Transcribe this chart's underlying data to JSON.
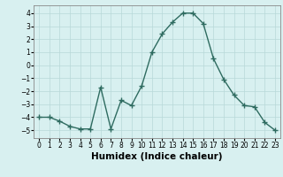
{
  "x": [
    0,
    1,
    2,
    3,
    4,
    5,
    6,
    7,
    8,
    9,
    10,
    11,
    12,
    13,
    14,
    15,
    16,
    17,
    18,
    19,
    20,
    21,
    22,
    23
  ],
  "y": [
    -4.0,
    -4.0,
    -4.3,
    -4.7,
    -4.9,
    -4.9,
    -1.7,
    -4.9,
    -2.7,
    -3.1,
    -1.6,
    1.0,
    2.4,
    3.3,
    4.0,
    4.0,
    3.2,
    0.5,
    -1.1,
    -2.3,
    -3.1,
    -3.2,
    -4.4,
    -5.0
  ],
  "line_color": "#2e6b60",
  "marker": "+",
  "markersize": 4,
  "linewidth": 1.0,
  "bg_color": "#d8f0f0",
  "grid_color": "#b8d8d8",
  "xlabel": "Humidex (Indice chaleur)",
  "ylim": [
    -5.6,
    4.6
  ],
  "xlim": [
    -0.5,
    23.5
  ],
  "yticks": [
    -5,
    -4,
    -3,
    -2,
    -1,
    0,
    1,
    2,
    3,
    4
  ],
  "xticks": [
    0,
    1,
    2,
    3,
    4,
    5,
    6,
    7,
    8,
    9,
    10,
    11,
    12,
    13,
    14,
    15,
    16,
    17,
    18,
    19,
    20,
    21,
    22,
    23
  ],
  "tick_fontsize": 5.5,
  "xlabel_fontsize": 7.5,
  "xlabel_fontweight": "bold"
}
